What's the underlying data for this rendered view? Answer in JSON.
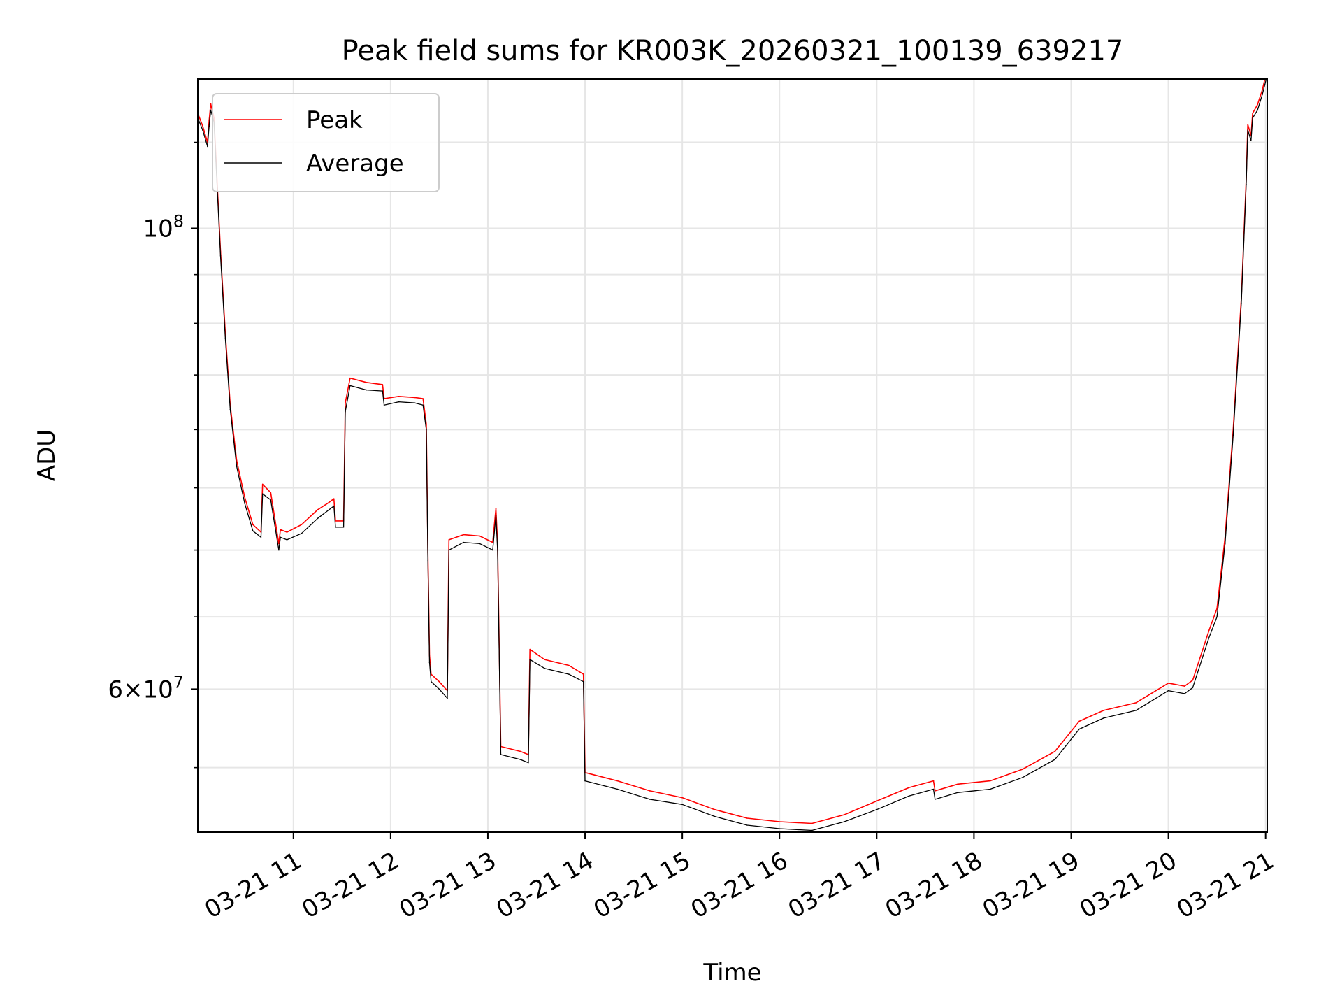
{
  "chart_data": {
    "type": "line",
    "title": "Peak field sums for KR003K_20260321_100139_639217",
    "xlabel": "Time",
    "ylabel": "ADU",
    "y_scale": "log",
    "grid": true,
    "legend_position": "top-left",
    "xlim": [
      "2026-03-21 10:01",
      "2026-03-21 21:01"
    ],
    "ylim": [
      51200000,
      118000000
    ],
    "x_ticks": [
      {
        "value": "2026-03-21 11:00",
        "label": "03-21 11"
      },
      {
        "value": "2026-03-21 12:00",
        "label": "03-21 12"
      },
      {
        "value": "2026-03-21 13:00",
        "label": "03-21 13"
      },
      {
        "value": "2026-03-21 14:00",
        "label": "03-21 14"
      },
      {
        "value": "2026-03-21 15:00",
        "label": "03-21 15"
      },
      {
        "value": "2026-03-21 16:00",
        "label": "03-21 16"
      },
      {
        "value": "2026-03-21 17:00",
        "label": "03-21 17"
      },
      {
        "value": "2026-03-21 18:00",
        "label": "03-21 18"
      },
      {
        "value": "2026-03-21 19:00",
        "label": "03-21 19"
      },
      {
        "value": "2026-03-21 20:00",
        "label": "03-21 20"
      },
      {
        "value": "2026-03-21 21:00",
        "label": "03-21 21"
      }
    ],
    "y_major_ticks": [
      {
        "value": 60000000,
        "base": "6",
        "exp": "7",
        "times": "×",
        "ten": "10"
      },
      {
        "value": 100000000,
        "base": "",
        "exp": "8",
        "times": "",
        "ten": "10"
      }
    ],
    "y_minor_ticks": [
      55000000,
      65000000,
      70000000,
      75000000,
      80000000,
      85000000,
      90000000,
      95000000,
      110000000
    ],
    "series": [
      {
        "name": "Average",
        "color": "#000000",
        "x": [
          "2026-03-21 10:01",
          "2026-03-21 10:04",
          "2026-03-21 10:07",
          "2026-03-21 10:08",
          "2026-03-21 10:09",
          "2026-03-21 10:11",
          "2026-03-21 10:15",
          "2026-03-21 10:18",
          "2026-03-21 10:21",
          "2026-03-21 10:25",
          "2026-03-21 10:30",
          "2026-03-21 10:35",
          "2026-03-21 10:40",
          "2026-03-21 10:41",
          "2026-03-21 10:46",
          "2026-03-21 10:51",
          "2026-03-21 10:52",
          "2026-03-21 10:56",
          "2026-03-21 11:05",
          "2026-03-21 11:15",
          "2026-03-21 11:22",
          "2026-03-21 11:25",
          "2026-03-21 11:26",
          "2026-03-21 11:31",
          "2026-03-21 11:32",
          "2026-03-21 11:35",
          "2026-03-21 11:45",
          "2026-03-21 11:55",
          "2026-03-21 11:56",
          "2026-03-21 12:05",
          "2026-03-21 12:15",
          "2026-03-21 12:20",
          "2026-03-21 12:22",
          "2026-03-21 12:23",
          "2026-03-21 12:24",
          "2026-03-21 12:25",
          "2026-03-21 12:30",
          "2026-03-21 12:35",
          "2026-03-21 12:36",
          "2026-03-21 12:45",
          "2026-03-21 12:55",
          "2026-03-21 13:03",
          "2026-03-21 13:05",
          "2026-03-21 13:06",
          "2026-03-21 13:08",
          "2026-03-21 13:20",
          "2026-03-21 13:25",
          "2026-03-21 13:26",
          "2026-03-21 13:35",
          "2026-03-21 13:50",
          "2026-03-21 13:59",
          "2026-03-21 14:00",
          "2026-03-21 14:20",
          "2026-03-21 14:40",
          "2026-03-21 15:00",
          "2026-03-21 15:20",
          "2026-03-21 15:40",
          "2026-03-21 16:00",
          "2026-03-21 16:20",
          "2026-03-21 16:40",
          "2026-03-21 17:00",
          "2026-03-21 17:20",
          "2026-03-21 17:35",
          "2026-03-21 17:36",
          "2026-03-21 17:50",
          "2026-03-21 18:10",
          "2026-03-21 18:30",
          "2026-03-21 18:50",
          "2026-03-21 19:05",
          "2026-03-21 19:20",
          "2026-03-21 19:40",
          "2026-03-21 20:00",
          "2026-03-21 20:10",
          "2026-03-21 20:15",
          "2026-03-21 20:25",
          "2026-03-21 20:30",
          "2026-03-21 20:35",
          "2026-03-21 20:40",
          "2026-03-21 20:45",
          "2026-03-21 20:48",
          "2026-03-21 20:49",
          "2026-03-21 20:51",
          "2026-03-21 20:52",
          "2026-03-21 20:55",
          "2026-03-21 20:58",
          "2026-03-21 21:01"
        ],
        "values": [
          113000000,
          111500000,
          109500000,
          112000000,
          114000000,
          112500000,
          97000000,
          88500000,
          81800000,
          76800000,
          73700000,
          71500000,
          71000000,
          74500000,
          74000000,
          70000000,
          71000000,
          70800000,
          71300000,
          72500000,
          73200000,
          73500000,
          71800000,
          71800000,
          81600000,
          84000000,
          83600000,
          83500000,
          82200000,
          82500000,
          82400000,
          82200000,
          80000000,
          69200000,
          61800000,
          60500000,
          60000000,
          59400000,
          70000000,
          70600000,
          70500000,
          70000000,
          72700000,
          70000000,
          55800000,
          55500000,
          55300000,
          62000000,
          61400000,
          61000000,
          60500000,
          54200000,
          53700000,
          53100000,
          52800000,
          52100000,
          51600000,
          51400000,
          51300000,
          51800000,
          52500000,
          53300000,
          53700000,
          53100000,
          53500000,
          53700000,
          54400000,
          55500000,
          57400000,
          58100000,
          58600000,
          59900000,
          59700000,
          60100000,
          63500000,
          65000000,
          70500000,
          79500000,
          92000000,
          105000000,
          111500000,
          110200000,
          113000000,
          114000000,
          116000000,
          118500000
        ]
      },
      {
        "name": "Peak",
        "color": "#ff0000",
        "x": [
          "2026-03-21 10:01",
          "2026-03-21 10:04",
          "2026-03-21 10:07",
          "2026-03-21 10:08",
          "2026-03-21 10:09",
          "2026-03-21 10:11",
          "2026-03-21 10:15",
          "2026-03-21 10:18",
          "2026-03-21 10:21",
          "2026-03-21 10:25",
          "2026-03-21 10:30",
          "2026-03-21 10:35",
          "2026-03-21 10:40",
          "2026-03-21 10:41",
          "2026-03-21 10:46",
          "2026-03-21 10:51",
          "2026-03-21 10:52",
          "2026-03-21 10:56",
          "2026-03-21 11:05",
          "2026-03-21 11:15",
          "2026-03-21 11:22",
          "2026-03-21 11:25",
          "2026-03-21 11:26",
          "2026-03-21 11:31",
          "2026-03-21 11:32",
          "2026-03-21 11:35",
          "2026-03-21 11:45",
          "2026-03-21 11:55",
          "2026-03-21 11:56",
          "2026-03-21 12:05",
          "2026-03-21 12:15",
          "2026-03-21 12:20",
          "2026-03-21 12:22",
          "2026-03-21 12:23",
          "2026-03-21 12:24",
          "2026-03-21 12:25",
          "2026-03-21 12:30",
          "2026-03-21 12:35",
          "2026-03-21 12:36",
          "2026-03-21 12:45",
          "2026-03-21 12:55",
          "2026-03-21 13:03",
          "2026-03-21 13:05",
          "2026-03-21 13:06",
          "2026-03-21 13:08",
          "2026-03-21 13:20",
          "2026-03-21 13:25",
          "2026-03-21 13:26",
          "2026-03-21 13:35",
          "2026-03-21 13:50",
          "2026-03-21 13:59",
          "2026-03-21 14:00",
          "2026-03-21 14:20",
          "2026-03-21 14:40",
          "2026-03-21 15:00",
          "2026-03-21 15:20",
          "2026-03-21 15:40",
          "2026-03-21 16:00",
          "2026-03-21 16:20",
          "2026-03-21 16:40",
          "2026-03-21 17:00",
          "2026-03-21 17:20",
          "2026-03-21 17:35",
          "2026-03-21 17:36",
          "2026-03-21 17:50",
          "2026-03-21 18:10",
          "2026-03-21 18:30",
          "2026-03-21 18:50",
          "2026-03-21 19:05",
          "2026-03-21 19:20",
          "2026-03-21 19:40",
          "2026-03-21 20:00",
          "2026-03-21 20:10",
          "2026-03-21 20:15",
          "2026-03-21 20:25",
          "2026-03-21 20:30",
          "2026-03-21 20:35",
          "2026-03-21 20:40",
          "2026-03-21 20:45",
          "2026-03-21 20:48",
          "2026-03-21 20:49",
          "2026-03-21 20:51",
          "2026-03-21 20:52",
          "2026-03-21 20:55",
          "2026-03-21 20:58",
          "2026-03-21 21:01"
        ],
        "values": [
          113600000,
          112000000,
          110000000,
          112700000,
          114800000,
          113000000,
          97500000,
          89000000,
          82200000,
          77300000,
          74200000,
          72000000,
          71400000,
          75300000,
          74600000,
          70500000,
          71600000,
          71400000,
          72000000,
          73200000,
          73800000,
          74100000,
          72300000,
          72300000,
          82400000,
          84700000,
          84300000,
          84100000,
          82800000,
          83000000,
          82900000,
          82800000,
          80500000,
          69800000,
          62300000,
          61000000,
          60500000,
          59900000,
          70800000,
          71200000,
          71100000,
          70600000,
          73300000,
          70500000,
          56300000,
          56000000,
          55800000,
          62700000,
          62000000,
          61600000,
          61000000,
          54700000,
          54200000,
          53600000,
          53200000,
          52500000,
          52000000,
          51800000,
          51700000,
          52200000,
          53000000,
          53800000,
          54200000,
          53600000,
          54000000,
          54200000,
          54900000,
          56000000,
          57900000,
          58600000,
          59100000,
          60400000,
          60200000,
          60600000,
          64000000,
          65600000,
          71000000,
          80000000,
          92500000,
          105500000,
          112200000,
          110800000,
          113600000,
          114700000,
          116600000,
          119300000
        ]
      }
    ]
  }
}
